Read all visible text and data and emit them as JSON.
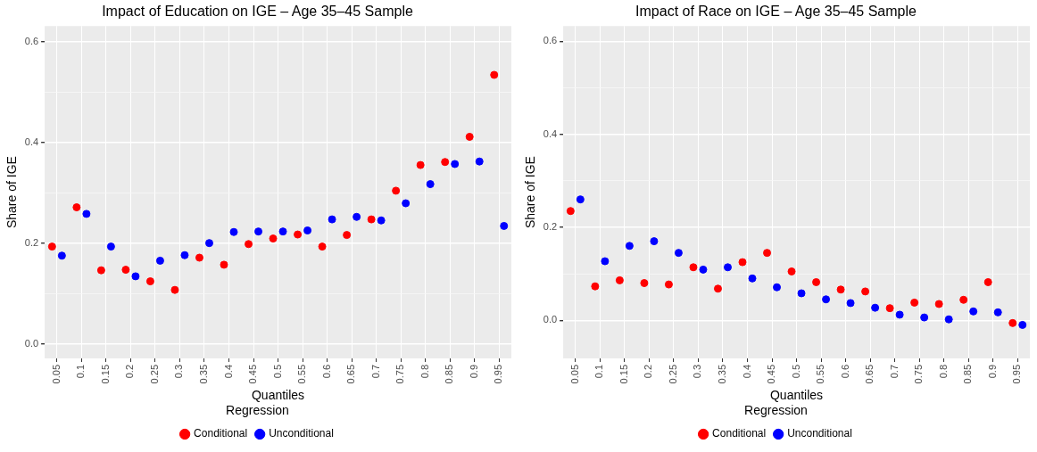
{
  "chart_data": [
    {
      "type": "scatter",
      "title": "Impact of Education on IGE – Age 35–45 Sample",
      "xlabel": "Quantiles",
      "ylabel": "Share of IGE",
      "legend_title": "Regression",
      "legend": "bottom",
      "grid": true,
      "marker": "circle",
      "categories": [
        "0.05",
        "0.1",
        "0.15",
        "0.2",
        "0.25",
        "0.3",
        "0.35",
        "0.4",
        "0.45",
        "0.5",
        "0.55",
        "0.6",
        "0.65",
        "0.7",
        "0.75",
        "0.8",
        "0.85",
        "0.9",
        "0.95"
      ],
      "ylim": [
        -0.029,
        0.631
      ],
      "yticks": [
        {
          "value": 0,
          "label": "0.0"
        },
        {
          "value": 0.1,
          "label": null
        },
        0.2,
        {
          "value": 0.3,
          "label": null
        },
        0.4,
        {
          "value": 0.5,
          "label": null
        },
        0.6
      ],
      "series": [
        {
          "name": "Conditional",
          "color": "#ff0000",
          "values": [
            0.193,
            0.271,
            0.146,
            0.147,
            0.124,
            0.107,
            0.171,
            0.157,
            0.198,
            0.209,
            0.217,
            0.193,
            0.216,
            0.247,
            0.304,
            0.355,
            0.361,
            0.411,
            0.534
          ]
        },
        {
          "name": "Unconditional",
          "color": "#0000ff",
          "values": [
            0.175,
            0.258,
            0.193,
            0.134,
            0.165,
            0.176,
            0.2,
            0.222,
            0.223,
            0.223,
            0.225,
            0.247,
            0.252,
            0.245,
            0.279,
            0.317,
            0.357,
            0.362,
            0.234
          ]
        }
      ]
    },
    {
      "type": "scatter",
      "title": "Impact of Race on IGE – Age 35–45 Sample",
      "xlabel": "Quantiles",
      "ylabel": "Share of IGE",
      "legend_title": "Regression",
      "legend": "bottom",
      "grid": true,
      "marker": "circle",
      "categories": [
        "0.05",
        "0.1",
        "0.15",
        "0.2",
        "0.25",
        "0.3",
        "0.35",
        "0.4",
        "0.45",
        "0.5",
        "0.55",
        "0.6",
        "0.65",
        "0.7",
        "0.75",
        "0.8",
        "0.85",
        "0.9",
        "0.95"
      ],
      "ylim": [
        -0.082,
        0.633
      ],
      "yticks": [
        {
          "value": 0,
          "label": "0.0"
        },
        {
          "value": 0.1,
          "label": null
        },
        0.2,
        {
          "value": 0.3,
          "label": null
        },
        0.4,
        {
          "value": 0.5,
          "label": null
        },
        0.6
      ],
      "series": [
        {
          "name": "Conditional",
          "color": "#ff0000",
          "values": [
            0.235,
            0.073,
            0.086,
            0.08,
            0.077,
            0.114,
            0.068,
            0.125,
            0.145,
            0.105,
            0.082,
            0.066,
            0.062,
            0.026,
            0.038,
            0.035,
            0.044,
            0.082,
            -0.006
          ]
        },
        {
          "name": "Unconditional",
          "color": "#0000ff",
          "values": [
            0.26,
            0.127,
            0.16,
            0.17,
            0.145,
            0.109,
            0.114,
            0.09,
            0.071,
            0.058,
            0.045,
            0.037,
            0.027,
            0.012,
            0.006,
            0.002,
            0.019,
            0.017,
            -0.01
          ]
        }
      ]
    }
  ]
}
